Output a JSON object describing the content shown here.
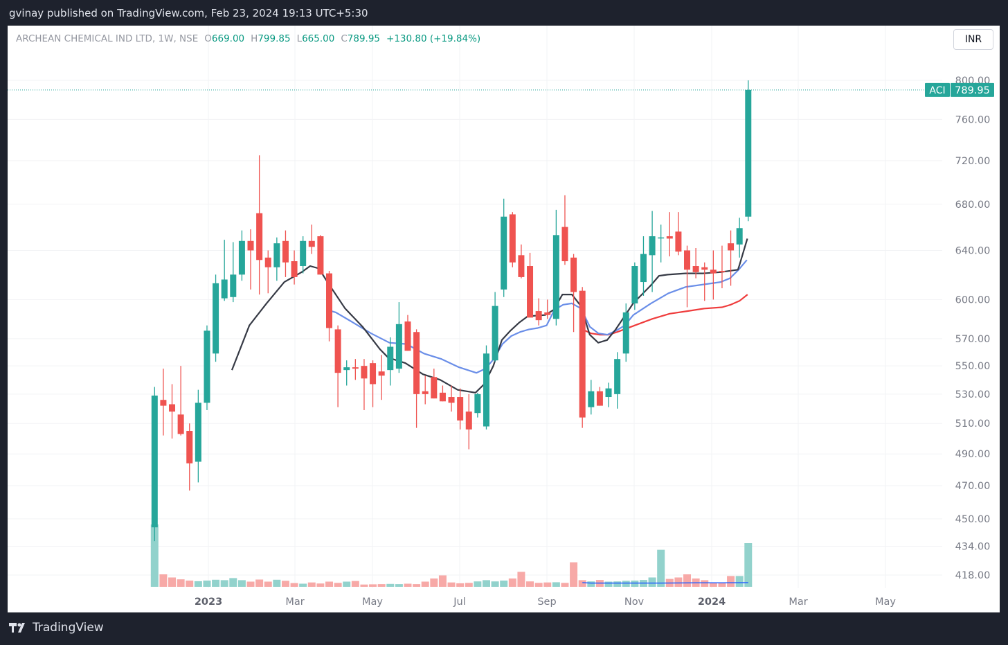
{
  "header": {
    "publish_line": "gvinay published on TradingView.com, Feb 23, 2024 19:13 UTC+5:30"
  },
  "legend": {
    "symbol": "ARCHEAN CHEMICAL IND LTD, 1W, NSE",
    "o_label": "O",
    "o_value": "669.00",
    "h_label": "H",
    "h_value": "799.85",
    "l_label": "L",
    "l_value": "665.00",
    "c_label": "C",
    "c_value": "789.95",
    "change": "+130.80 (+19.84%)"
  },
  "currency_button": "INR",
  "footer": {
    "brand": "TradingView"
  },
  "colors": {
    "up": "#26a69a",
    "down": "#ef5350",
    "up_vol": "#92d2cc",
    "down_vol": "#f7a9a7",
    "ma_black": "#363a45",
    "ma_blue": "#6a8ee8",
    "ma_red": "#ef3c3c",
    "vol_ma": "#2962ff"
  },
  "chart_data": {
    "type": "candlestick",
    "symbol": "ACI",
    "last_price": "789.95",
    "y_scale": "log",
    "y_ticks": [
      "800.00",
      "760.00",
      "720.00",
      "680.00",
      "640.00",
      "600.00",
      "570.00",
      "550.00",
      "530.00",
      "510.00",
      "490.00",
      "470.00",
      "450.00",
      "434.00",
      "418.00"
    ],
    "x_ticks": [
      "2023",
      "Mar",
      "May",
      "Jul",
      "Sep",
      "Nov",
      "2024",
      "Mar",
      "May"
    ],
    "grid": true,
    "candles": [
      {
        "o": 445,
        "h": 535,
        "l": 437,
        "c": 529
      },
      {
        "o": 526,
        "h": 548,
        "l": 502,
        "c": 522
      },
      {
        "o": 523,
        "h": 537,
        "l": 500,
        "c": 518
      },
      {
        "o": 516,
        "h": 550,
        "l": 502,
        "c": 503
      },
      {
        "o": 505,
        "h": 510,
        "l": 467,
        "c": 484
      },
      {
        "o": 485,
        "h": 533,
        "l": 472,
        "c": 524
      },
      {
        "o": 524,
        "h": 580,
        "l": 519,
        "c": 576
      },
      {
        "o": 559,
        "h": 620,
        "l": 553,
        "c": 613
      },
      {
        "o": 601,
        "h": 649,
        "l": 599,
        "c": 616
      },
      {
        "o": 602,
        "h": 647,
        "l": 598,
        "c": 620
      },
      {
        "o": 620,
        "h": 657,
        "l": 615,
        "c": 648
      },
      {
        "o": 648,
        "h": 658,
        "l": 608,
        "c": 640
      },
      {
        "o": 672,
        "h": 725,
        "l": 604,
        "c": 632
      },
      {
        "o": 634,
        "h": 640,
        "l": 605,
        "c": 626
      },
      {
        "o": 626,
        "h": 651,
        "l": 615,
        "c": 646
      },
      {
        "o": 648,
        "h": 657,
        "l": 618,
        "c": 630
      },
      {
        "o": 631,
        "h": 640,
        "l": 612,
        "c": 618
      },
      {
        "o": 627,
        "h": 652,
        "l": 621,
        "c": 648
      },
      {
        "o": 648,
        "h": 662,
        "l": 637,
        "c": 643
      },
      {
        "o": 652,
        "h": 653,
        "l": 620,
        "c": 620
      },
      {
        "o": 621,
        "h": 623,
        "l": 568,
        "c": 578
      },
      {
        "o": 577,
        "h": 580,
        "l": 521,
        "c": 545
      },
      {
        "o": 547,
        "h": 554,
        "l": 536,
        "c": 549
      },
      {
        "o": 549,
        "h": 555,
        "l": 540,
        "c": 548
      },
      {
        "o": 550,
        "h": 555,
        "l": 519,
        "c": 541
      },
      {
        "o": 552,
        "h": 554,
        "l": 521,
        "c": 537
      },
      {
        "o": 546,
        "h": 558,
        "l": 526,
        "c": 543
      },
      {
        "o": 547,
        "h": 571,
        "l": 536,
        "c": 564
      },
      {
        "o": 548,
        "h": 598,
        "l": 545,
        "c": 581
      },
      {
        "o": 583,
        "h": 588,
        "l": 561,
        "c": 561
      },
      {
        "o": 575,
        "h": 577,
        "l": 507,
        "c": 530
      },
      {
        "o": 532,
        "h": 543,
        "l": 523,
        "c": 530
      },
      {
        "o": 542,
        "h": 548,
        "l": 527,
        "c": 527
      },
      {
        "o": 531,
        "h": 536,
        "l": 525,
        "c": 525
      },
      {
        "o": 528,
        "h": 536,
        "l": 518,
        "c": 524
      },
      {
        "o": 528,
        "h": 534,
        "l": 506,
        "c": 512
      },
      {
        "o": 518,
        "h": 530,
        "l": 493,
        "c": 506
      },
      {
        "o": 517,
        "h": 531,
        "l": 514,
        "c": 530
      },
      {
        "o": 508,
        "h": 565,
        "l": 506,
        "c": 559
      },
      {
        "o": 554,
        "h": 606,
        "l": 553,
        "c": 595
      },
      {
        "o": 608,
        "h": 685,
        "l": 602,
        "c": 669
      },
      {
        "o": 671,
        "h": 673,
        "l": 626,
        "c": 630
      },
      {
        "o": 636,
        "h": 645,
        "l": 617,
        "c": 618
      },
      {
        "o": 627,
        "h": 638,
        "l": 587,
        "c": 586
      },
      {
        "o": 591,
        "h": 601,
        "l": 580,
        "c": 584
      },
      {
        "o": 590,
        "h": 600,
        "l": 585,
        "c": 588
      },
      {
        "o": 585,
        "h": 675,
        "l": 580,
        "c": 653
      },
      {
        "o": 660,
        "h": 688,
        "l": 628,
        "c": 631
      },
      {
        "o": 634,
        "h": 637,
        "l": 575,
        "c": 606
      },
      {
        "o": 607,
        "h": 610,
        "l": 507,
        "c": 514
      },
      {
        "o": 521,
        "h": 540,
        "l": 516,
        "c": 532
      },
      {
        "o": 532,
        "h": 535,
        "l": 522,
        "c": 522
      },
      {
        "o": 528,
        "h": 538,
        "l": 521,
        "c": 534
      },
      {
        "o": 530,
        "h": 560,
        "l": 520,
        "c": 555
      },
      {
        "o": 559,
        "h": 597,
        "l": 553,
        "c": 590
      },
      {
        "o": 597,
        "h": 630,
        "l": 592,
        "c": 627
      },
      {
        "o": 614,
        "h": 652,
        "l": 603,
        "c": 637
      },
      {
        "o": 636,
        "h": 674,
        "l": 606,
        "c": 652
      },
      {
        "o": 651,
        "h": 662,
        "l": 630,
        "c": 651
      },
      {
        "o": 652,
        "h": 673,
        "l": 635,
        "c": 650
      },
      {
        "o": 656,
        "h": 673,
        "l": 636,
        "c": 639
      },
      {
        "o": 640,
        "h": 644,
        "l": 594,
        "c": 624
      },
      {
        "o": 627,
        "h": 642,
        "l": 617,
        "c": 622
      },
      {
        "o": 626,
        "h": 630,
        "l": 599,
        "c": 624
      },
      {
        "o": 624,
        "h": 640,
        "l": 600,
        "c": 621
      },
      {
        "o": 623,
        "h": 644,
        "l": 609,
        "c": 622
      },
      {
        "o": 646,
        "h": 657,
        "l": 611,
        "c": 640
      },
      {
        "o": 645,
        "h": 668,
        "l": 634,
        "c": 659
      },
      {
        "o": 669,
        "h": 800,
        "l": 665,
        "c": 790
      }
    ],
    "volume": [
      30,
      6,
      4.5,
      3.6,
      3,
      2.7,
      3,
      3.4,
      3.2,
      4.2,
      3.2,
      2.5,
      3.5,
      2.5,
      3.4,
      2.9,
      1.8,
      1.5,
      2.1,
      1.6,
      2.5,
      1.9,
      2.5,
      2.8,
      1.1,
      1.2,
      1.3,
      1.4,
      1.3,
      1.5,
      1.3,
      2.5,
      4,
      5.5,
      2.1,
      1.7,
      1.9,
      2.6,
      3.2,
      2.6,
      3,
      4,
      7.2,
      2.6,
      1.9,
      2.1,
      2.2,
      1.9,
      11.8,
      3.2,
      2.6,
      3.3,
      2.5,
      2.6,
      2.9,
      3,
      3.3,
      4.5,
      17.8,
      3.8,
      4.5,
      6,
      4,
      3.2,
      2.1,
      2,
      5.2,
      5.2,
      21
    ],
    "ma_black": [
      [
        9,
        0.36,
        547
      ],
      [
        11,
        0.36,
        580
      ],
      [
        13,
        0.32,
        597
      ],
      [
        15,
        0.36,
        614
      ],
      [
        17,
        0.34,
        622
      ],
      [
        18,
        0.32,
        627
      ],
      [
        19,
        0.32,
        625
      ],
      [
        20,
        0.3,
        614
      ],
      [
        22,
        0.32,
        593
      ],
      [
        24,
        0.32,
        579
      ],
      [
        26,
        0.34,
        562
      ],
      [
        27,
        0.26,
        556
      ],
      [
        29,
        0.22,
        552
      ],
      [
        31,
        0.24,
        544
      ],
      [
        33,
        0.22,
        540
      ],
      [
        35,
        0.22,
        533
      ],
      [
        37,
        0.26,
        531
      ],
      [
        38,
        0.26,
        537
      ],
      [
        39,
        0.3,
        550
      ],
      [
        40,
        0.28,
        569
      ],
      [
        41,
        0.26,
        576
      ],
      [
        42,
        0.24,
        582
      ],
      [
        43,
        0.24,
        587
      ],
      [
        45,
        0.24,
        588
      ],
      [
        46,
        0.22,
        592
      ],
      [
        47,
        0.22,
        604
      ],
      [
        48,
        0.3,
        604
      ],
      [
        49,
        0.32,
        595
      ],
      [
        50,
        0.34,
        573
      ],
      [
        51,
        0.32,
        567
      ],
      [
        52,
        0.34,
        569
      ],
      [
        53,
        0.32,
        577
      ],
      [
        55,
        0.32,
        597
      ],
      [
        57,
        0.3,
        611
      ],
      [
        58,
        0.28,
        619
      ],
      [
        59,
        0.28,
        620
      ],
      [
        61,
        0.3,
        621
      ],
      [
        63,
        0.32,
        621
      ],
      [
        65,
        0.32,
        622
      ],
      [
        67,
        0.32,
        624
      ],
      [
        67,
        0.5,
        628
      ],
      [
        68,
        0.4,
        650
      ]
    ],
    "ma_blue": [
      [
        20,
        0.24,
        592
      ],
      [
        21,
        0.26,
        590
      ],
      [
        23,
        0.28,
        582
      ],
      [
        25,
        0.3,
        574
      ],
      [
        27,
        0.4,
        567
      ],
      [
        29,
        0.36,
        566
      ],
      [
        31,
        0.36,
        559
      ],
      [
        33,
        0.36,
        555
      ],
      [
        35,
        0.36,
        549
      ],
      [
        37,
        0.36,
        545
      ],
      [
        38,
        0.4,
        548
      ],
      [
        39,
        0.36,
        555
      ],
      [
        40,
        0.34,
        566
      ],
      [
        41,
        0.36,
        572
      ],
      [
        42,
        0.36,
        575
      ],
      [
        43,
        0.4,
        577
      ],
      [
        44,
        0.38,
        578
      ],
      [
        45,
        0.4,
        580
      ],
      [
        46,
        0.3,
        592
      ],
      [
        47,
        0.3,
        596
      ],
      [
        48,
        0.3,
        597
      ],
      [
        49,
        0.34,
        593
      ],
      [
        50,
        0.36,
        579
      ],
      [
        51,
        0.34,
        574
      ],
      [
        52,
        0.36,
        573
      ],
      [
        53,
        0.36,
        576
      ],
      [
        54,
        0.36,
        580
      ],
      [
        55,
        0.34,
        588
      ],
      [
        57,
        0.36,
        597
      ],
      [
        59,
        0.36,
        605
      ],
      [
        61,
        0.34,
        610
      ],
      [
        63,
        0.36,
        612
      ],
      [
        65,
        0.34,
        614
      ],
      [
        66,
        0.4,
        617
      ],
      [
        67,
        0.4,
        624
      ],
      [
        68,
        0.34,
        632
      ]
    ],
    "ma_red": [
      [
        49,
        0.5,
        577
      ],
      [
        50,
        0.5,
        574
      ],
      [
        51,
        0.5,
        573
      ],
      [
        52,
        0.5,
        573
      ],
      [
        53,
        0.5,
        575
      ],
      [
        55,
        0.5,
        580
      ],
      [
        57,
        0.5,
        585
      ],
      [
        59,
        0.5,
        589
      ],
      [
        61,
        0.5,
        591
      ],
      [
        63,
        0.5,
        593
      ],
      [
        65,
        0.5,
        594
      ],
      [
        66,
        0.5,
        596
      ],
      [
        67,
        0.5,
        599
      ],
      [
        68,
        0.42,
        604
      ]
    ],
    "vol_ma": [
      [
        49,
        0.5,
        2.0
      ],
      [
        50,
        0.5,
        1.8
      ],
      [
        52,
        0.5,
        1.8
      ],
      [
        55,
        0.5,
        1.8
      ],
      [
        58,
        0.5,
        1.8
      ],
      [
        62,
        0.5,
        1.9
      ],
      [
        65,
        0.5,
        1.9
      ],
      [
        68,
        0.5,
        2.0
      ]
    ]
  }
}
